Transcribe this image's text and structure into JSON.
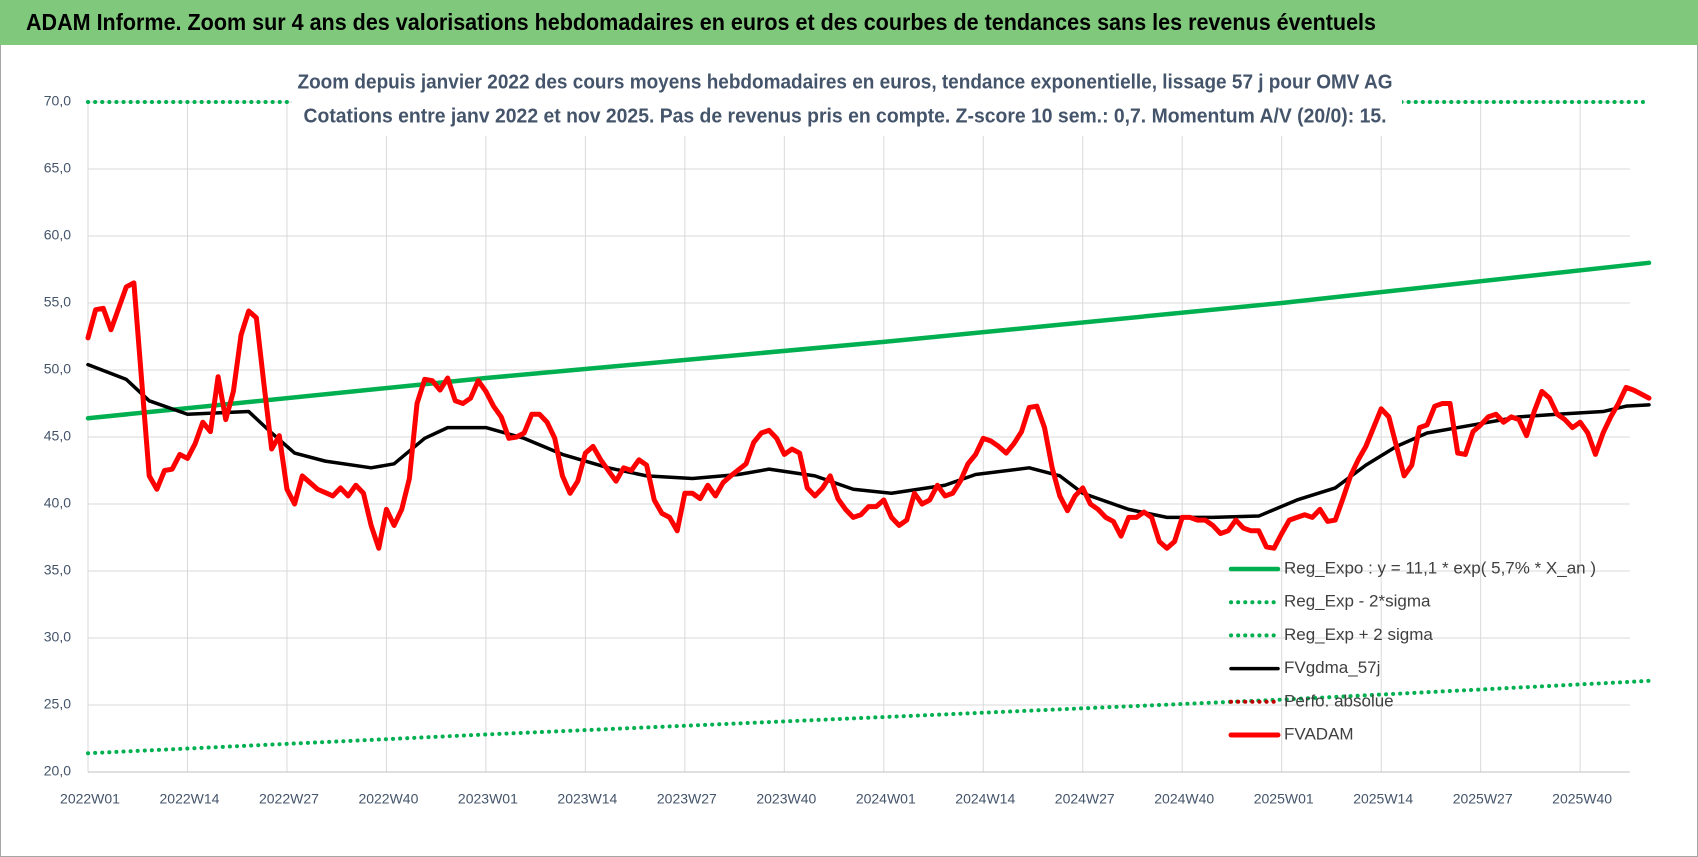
{
  "chart_data": {
    "type": "line",
    "title": "ADAM Informe. Zoom sur 4 ans des valorisations hebdomadaires en euros et des courbes de tendances sans les revenus éventuels",
    "subtitle": [
      "Zoom depuis janvier 2022 des cours moyens hebdomadaires en euros, tendance exponentielle, lissage 57 j pour OMV AG",
      "Cotations entre janv 2022 et nov 2025. Pas de revenus pris en compte. Z-score 10 sem.: 0,7. Momentum A/V (20/0): 15."
    ],
    "xlim": [
      0,
      204
    ],
    "xticks": [
      {
        "value": 0,
        "label": "2022W01"
      },
      {
        "value": 13,
        "label": "2022W14"
      },
      {
        "value": 26,
        "label": "2022W27"
      },
      {
        "value": 39,
        "label": "2022W40"
      },
      {
        "value": 52,
        "label": "2023W01"
      },
      {
        "value": 65,
        "label": "2023W14"
      },
      {
        "value": 78,
        "label": "2023W27"
      },
      {
        "value": 91,
        "label": "2023W40"
      },
      {
        "value": 104,
        "label": "2024W01"
      },
      {
        "value": 117,
        "label": "2024W14"
      },
      {
        "value": 130,
        "label": "2024W27"
      },
      {
        "value": 143,
        "label": "2024W40"
      },
      {
        "value": 156,
        "label": "2025W01"
      },
      {
        "value": 169,
        "label": "2025W14"
      },
      {
        "value": 182,
        "label": "2025W27"
      },
      {
        "value": 195,
        "label": "2025W40"
      }
    ],
    "ylim": [
      20,
      70
    ],
    "yticks": [
      {
        "value": 20,
        "label": "20,0"
      },
      {
        "value": 25,
        "label": "25,0"
      },
      {
        "value": 30,
        "label": "30,0"
      },
      {
        "value": 35,
        "label": "35,0"
      },
      {
        "value": 40,
        "label": "40,0"
      },
      {
        "value": 45,
        "label": "45,0"
      },
      {
        "value": 50,
        "label": "50,0"
      },
      {
        "value": 55,
        "label": "55,0"
      },
      {
        "value": 60,
        "label": "60,0"
      },
      {
        "value": 65,
        "label": "65,0"
      },
      {
        "value": 70,
        "label": "70,0"
      }
    ],
    "grid": true,
    "legend": "bottom-right",
    "series": [
      {
        "name": "Reg_Expo : y = 11,1 * exp( 5,7% *  X_an )",
        "color": "#00b050",
        "style": "solid",
        "x": [
          0,
          52,
          104,
          156,
          204
        ],
        "values": [
          46.4,
          49.4,
          52.1,
          55.0,
          58.0
        ]
      },
      {
        "name": "Reg_Exp - 2*sigma",
        "color": "#00b050",
        "style": "dotted",
        "x": [
          0,
          52,
          104,
          156,
          204
        ],
        "values": [
          21.4,
          22.8,
          24.1,
          25.4,
          26.8
        ]
      },
      {
        "name": "Reg_Exp + 2 sigma",
        "color": "#00b050",
        "style": "dotted",
        "x": [
          0,
          204
        ],
        "values": [
          70,
          70
        ]
      },
      {
        "name": "FVgdma_57j",
        "color": "#000000",
        "style": "solid",
        "x": [
          0,
          5,
          8,
          13,
          21,
          24,
          27,
          31,
          37,
          40,
          44,
          47,
          52,
          57,
          62,
          68,
          73,
          79,
          85,
          89,
          95,
          100,
          105,
          112,
          116,
          123,
          127,
          130,
          136,
          141,
          147,
          153,
          158,
          163,
          167,
          171,
          175,
          181,
          187,
          192,
          198,
          201,
          204
        ],
        "values": [
          50.4,
          49.3,
          47.7,
          46.7,
          46.9,
          45.3,
          43.8,
          43.2,
          42.7,
          43.0,
          44.9,
          45.7,
          45.7,
          44.9,
          43.7,
          42.7,
          42.1,
          41.9,
          42.2,
          42.6,
          42.1,
          41.1,
          40.8,
          41.4,
          42.2,
          42.7,
          42.1,
          40.8,
          39.6,
          39.0,
          39.0,
          39.1,
          40.3,
          41.2,
          42.9,
          44.3,
          45.3,
          45.9,
          46.5,
          46.7,
          46.9,
          47.3,
          47.4
        ]
      },
      {
        "name": "Perfo. absolue",
        "color": "#c00000",
        "style": "dotted",
        "x": [],
        "values": []
      },
      {
        "name": "FVADAM",
        "color": "#ff0000",
        "style": "solid",
        "x": [
          0,
          1,
          2,
          3,
          5,
          6,
          8,
          9,
          10,
          11,
          12,
          13,
          14,
          15,
          16,
          17,
          18,
          19,
          20,
          21,
          22,
          23,
          24,
          25,
          26,
          27,
          28,
          29,
          30,
          32,
          33,
          34,
          35,
          36,
          37,
          38,
          39,
          40,
          41,
          42,
          43,
          44,
          45,
          46,
          47,
          48,
          49,
          50,
          51,
          52,
          53,
          54,
          55,
          56,
          57,
          58,
          59,
          60,
          61,
          62,
          63,
          64,
          65,
          66,
          67,
          69,
          70,
          71,
          72,
          73,
          74,
          75,
          76,
          77,
          78,
          79,
          80,
          81,
          82,
          83,
          84,
          86,
          87,
          88,
          89,
          90,
          91,
          92,
          93,
          94,
          95,
          96,
          97,
          98,
          99,
          100,
          101,
          102,
          103,
          104,
          105,
          106,
          107,
          108,
          109,
          110,
          111,
          112,
          113,
          114,
          115,
          116,
          117,
          118,
          119,
          120,
          121,
          122,
          123,
          124,
          125,
          126,
          127,
          128,
          129,
          130,
          131,
          132,
          133,
          134,
          135,
          136,
          137,
          138,
          139,
          140,
          141,
          142,
          143,
          144,
          145,
          146,
          147,
          148,
          149,
          150,
          151,
          152,
          153,
          154,
          155,
          156,
          157,
          158,
          159,
          160,
          161,
          162,
          163,
          164,
          165,
          166,
          167,
          168,
          169,
          170,
          172,
          173,
          174,
          175,
          176,
          177,
          178,
          179,
          180,
          181,
          182,
          183,
          184,
          185,
          186,
          187,
          188,
          189,
          190,
          191,
          192,
          193,
          194,
          195,
          196,
          197,
          198,
          199,
          200,
          201,
          202,
          204
        ],
        "values": [
          52.4,
          54.5,
          54.6,
          53.0,
          56.2,
          56.5,
          42.1,
          41.1,
          42.5,
          42.6,
          43.7,
          43.4,
          44.5,
          46.1,
          45.4,
          49.5,
          46.3,
          48.4,
          52.6,
          54.4,
          53.9,
          48.9,
          44.1,
          45.1,
          41.1,
          40.0,
          42.1,
          41.6,
          41.1,
          40.6,
          41.2,
          40.6,
          41.4,
          40.8,
          38.4,
          36.7,
          39.6,
          38.4,
          39.6,
          41.9,
          47.5,
          49.3,
          49.2,
          48.5,
          49.4,
          47.7,
          47.5,
          47.9,
          49.2,
          48.4,
          47.3,
          46.5,
          44.9,
          45.0,
          45.3,
          46.7,
          46.7,
          46.1,
          44.9,
          42.1,
          40.8,
          41.7,
          43.8,
          44.3,
          43.3,
          41.7,
          42.7,
          42.5,
          43.3,
          42.9,
          40.3,
          39.3,
          39.0,
          38.0,
          40.8,
          40.8,
          40.4,
          41.4,
          40.6,
          41.6,
          42.1,
          43.0,
          44.6,
          45.3,
          45.5,
          44.9,
          43.7,
          44.1,
          43.8,
          41.2,
          40.6,
          41.2,
          42.1,
          40.4,
          39.6,
          39.0,
          39.2,
          39.8,
          39.8,
          40.3,
          39.0,
          38.4,
          38.8,
          40.8,
          40.0,
          40.3,
          41.4,
          40.6,
          40.8,
          41.7,
          43.0,
          43.7,
          44.9,
          44.7,
          44.3,
          43.8,
          44.5,
          45.4,
          47.2,
          47.3,
          45.7,
          42.7,
          40.6,
          39.5,
          40.6,
          41.2,
          40.0,
          39.6,
          39.0,
          38.7,
          37.6,
          39.0,
          39.0,
          39.4,
          39.0,
          37.2,
          36.7,
          37.2,
          39.0,
          39.0,
          38.8,
          38.8,
          38.4,
          37.8,
          38.0,
          38.8,
          38.2,
          38.0,
          38.0,
          36.8,
          36.7,
          37.8,
          38.8,
          39.0,
          39.2,
          39.0,
          39.6,
          38.7,
          38.8,
          40.4,
          42.1,
          43.3,
          44.3,
          45.7,
          47.1,
          46.5,
          42.1,
          42.9,
          45.7,
          45.9,
          47.3,
          47.5,
          47.5,
          43.8,
          43.7,
          45.4,
          45.9,
          46.5,
          46.7,
          46.1,
          46.5,
          46.3,
          45.1,
          46.9,
          48.4,
          47.9,
          46.7,
          46.3,
          45.7,
          46.1,
          45.3,
          43.7,
          45.3,
          46.5,
          47.5,
          48.7,
          48.5,
          47.9
        ]
      }
    ]
  }
}
